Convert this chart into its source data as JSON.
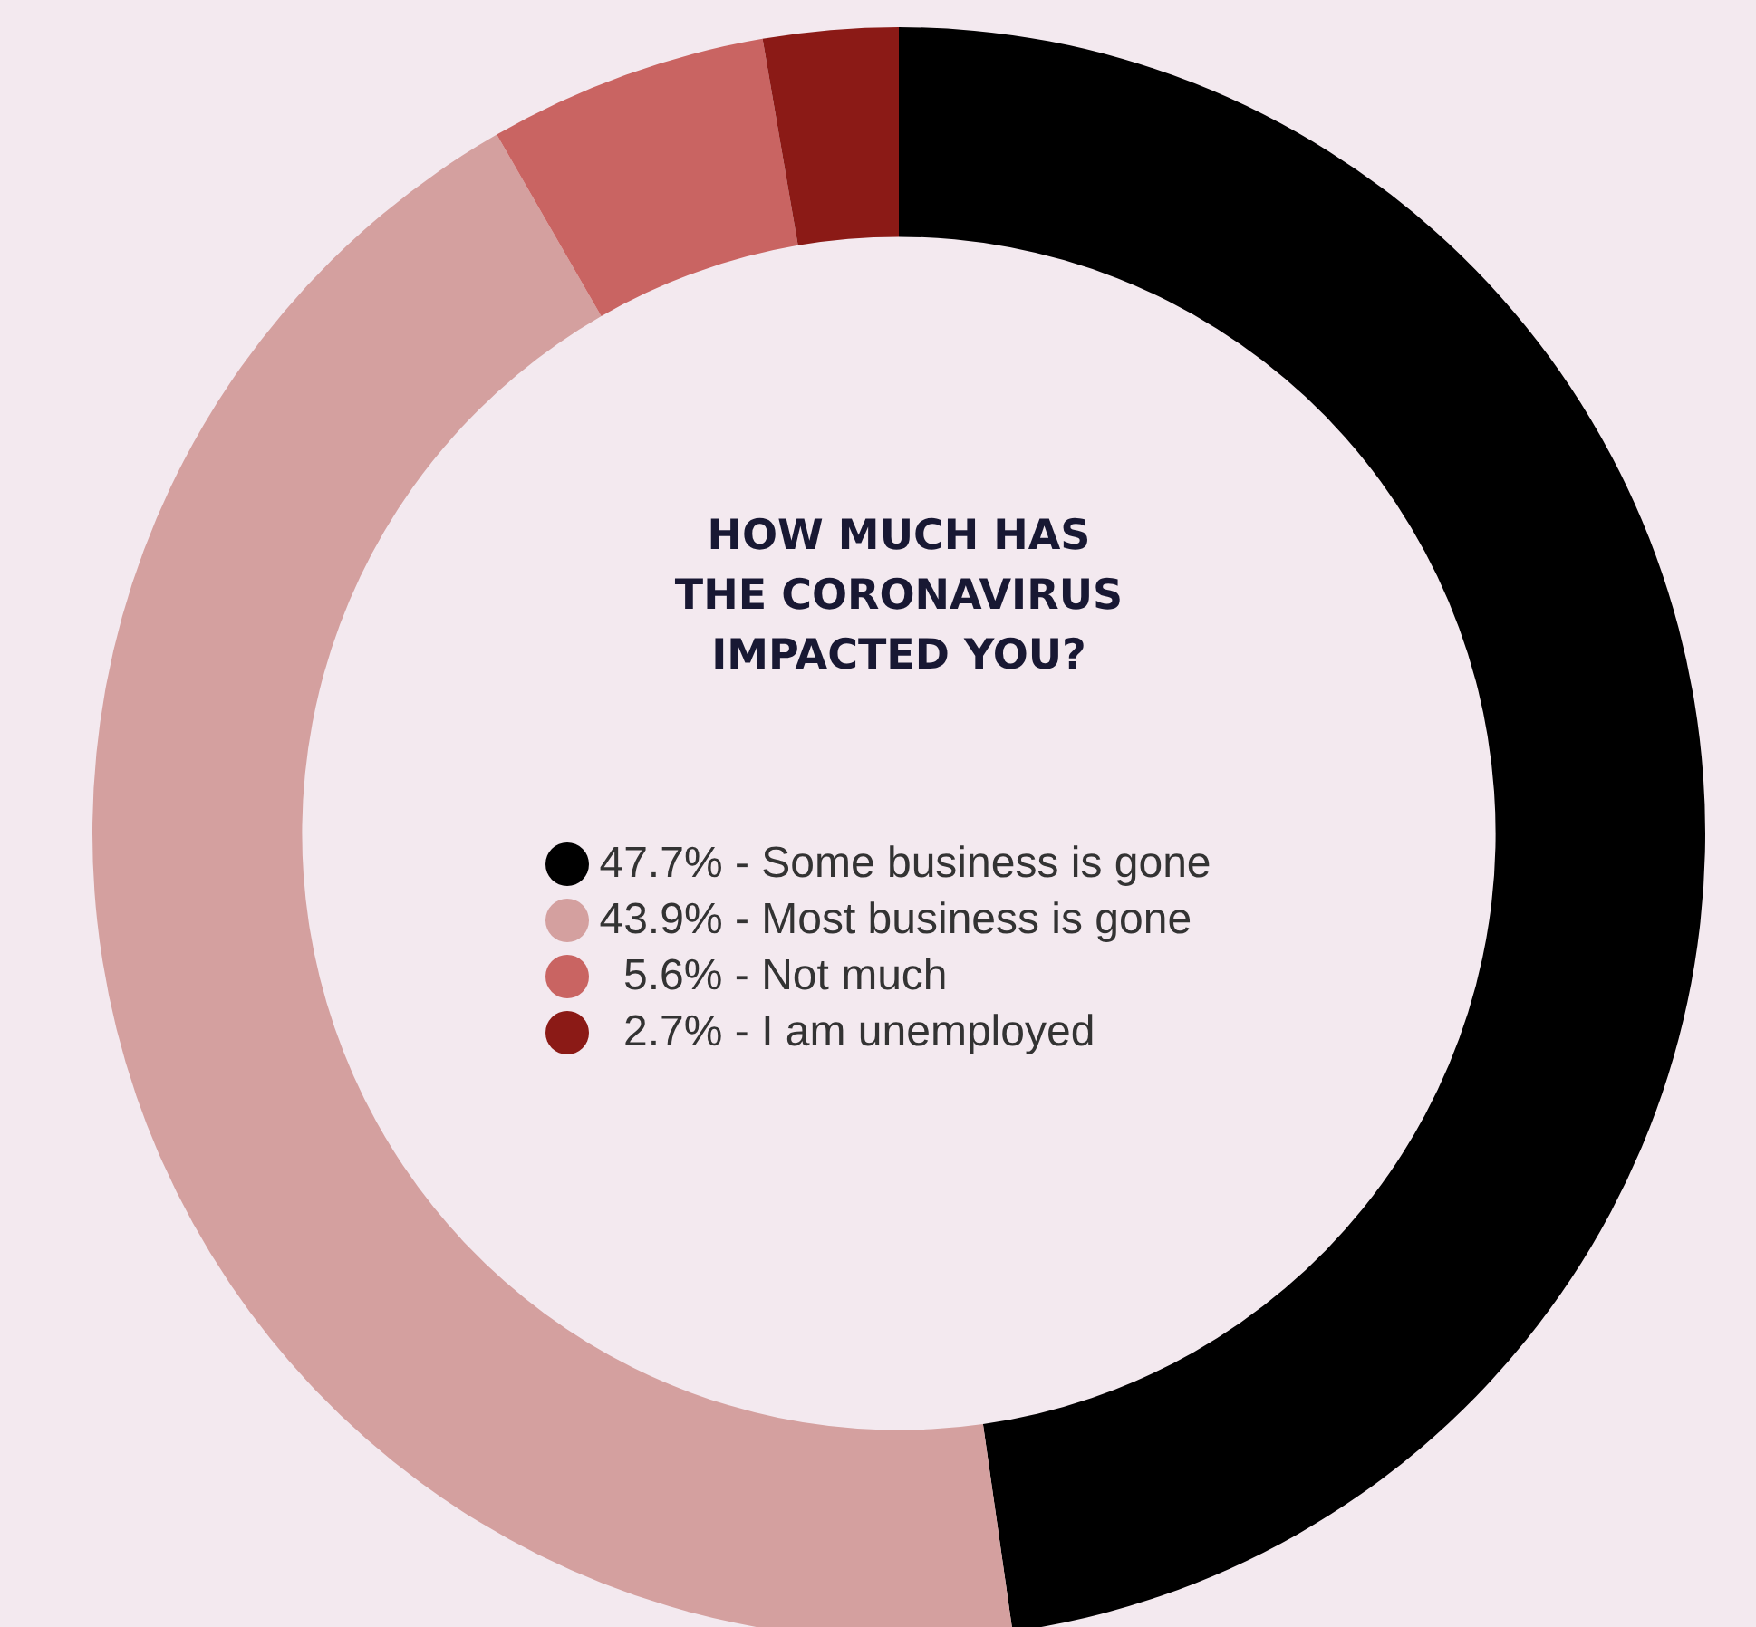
{
  "chart_data": {
    "type": "donut",
    "title": "HOW MUCH HAS THE CORONAVIRUS IMPACTED YOU?",
    "categories": [
      "Some business is gone",
      "Most business is gone",
      "Not much",
      "I am unemployed"
    ],
    "values": [
      47.7,
      43.9,
      5.6,
      2.7
    ],
    "value_labels": [
      "47.7% -",
      "43.9% -",
      "5.6% -",
      "2.7% -"
    ],
    "colors": [
      "#000000",
      "#d4a09f",
      "#c96462",
      "#8b1a16"
    ],
    "legend": "center"
  }
}
